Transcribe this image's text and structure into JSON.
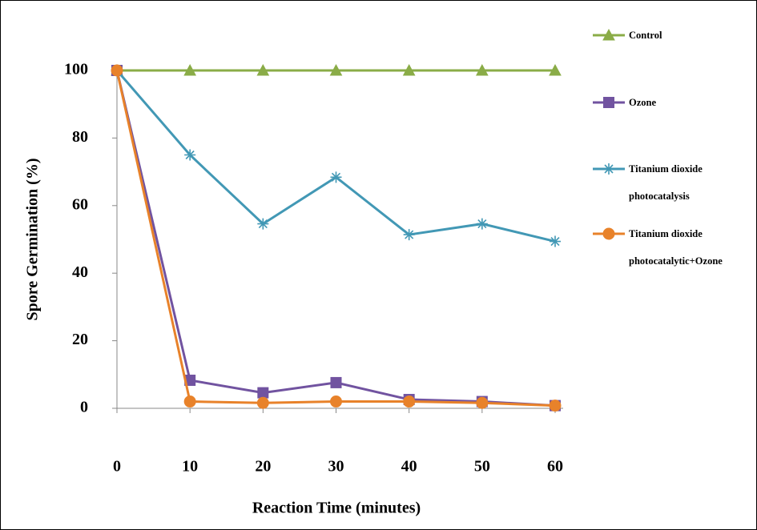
{
  "chart_data": {
    "type": "line",
    "x_label": "Reaction Time (minutes)",
    "y_label": "Spore Germination (%)",
    "x": [
      0,
      10,
      20,
      30,
      40,
      50,
      60
    ],
    "xlim": [
      0,
      60
    ],
    "xticks": [
      0,
      10,
      20,
      30,
      40,
      50,
      60
    ],
    "ylim": [
      0,
      100
    ],
    "yticks": [
      0,
      20,
      40,
      60,
      80,
      100
    ],
    "series": [
      {
        "name": "Control",
        "color": "#8aac47",
        "marker": "triangle",
        "values": [
          100,
          100,
          100,
          100,
          100,
          100,
          100
        ]
      },
      {
        "name": "Ozone",
        "color": "#7153a0",
        "marker": "square",
        "values": [
          100,
          8.3,
          4.6,
          7.6,
          2.6,
          2.0,
          0.8
        ]
      },
      {
        "name": "Titanium dioxide photocatalysis",
        "color": "#4298b5",
        "marker": "star",
        "values": [
          100,
          75,
          54.6,
          68.4,
          51.4,
          54.6,
          49.4
        ]
      },
      {
        "name": "Titanium dioxide photocatalytic+Ozone",
        "color": "#e8822a",
        "marker": "circle",
        "values": [
          100,
          2.0,
          1.6,
          2.0,
          2.0,
          1.6,
          0.8
        ]
      }
    ]
  }
}
